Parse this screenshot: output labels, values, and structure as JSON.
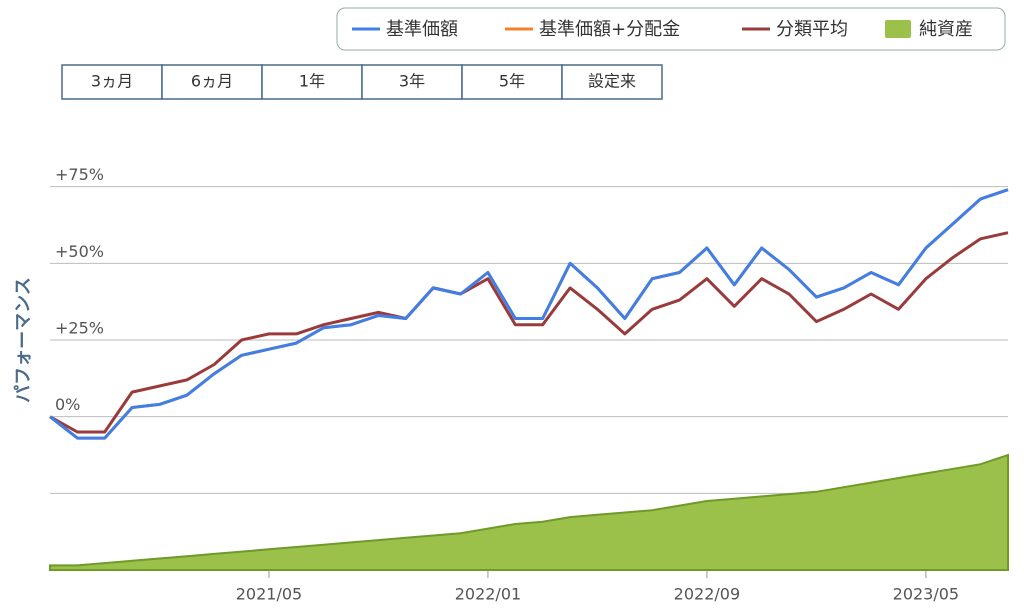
{
  "buttons": [
    "3ヵ月",
    "6ヵ月",
    "1年",
    "3年",
    "5年",
    "設定来"
  ],
  "chart_data": {
    "type": "line",
    "ylabel": "パフォーマンス",
    "x": [
      "2020/09",
      "2020/10",
      "2020/11",
      "2020/12",
      "2021/01",
      "2021/02",
      "2021/03",
      "2021/04",
      "2021/05",
      "2021/06",
      "2021/07",
      "2021/08",
      "2021/09",
      "2021/10",
      "2021/11",
      "2021/12",
      "2022/01",
      "2022/02",
      "2022/03",
      "2022/04",
      "2022/05",
      "2022/06",
      "2022/07",
      "2022/08",
      "2022/09",
      "2022/10",
      "2022/11",
      "2022/12",
      "2023/01",
      "2023/02",
      "2023/03",
      "2023/04",
      "2023/05",
      "2023/06",
      "2023/07",
      "2023/08"
    ],
    "xlim": [
      "2020/09",
      "2023/08"
    ],
    "xticks": [
      "2021/05",
      "2022/01",
      "2022/09",
      "2023/05"
    ],
    "ylim": [
      -50,
      100
    ],
    "yticks": [
      {
        "value": -25,
        "label": null
      },
      {
        "value": 0,
        "label": "0%"
      },
      {
        "value": 25,
        "label": "+25%"
      },
      {
        "value": 50,
        "label": "+50%"
      },
      {
        "value": 75,
        "label": "+75%"
      }
    ],
    "y2lim": [
      0,
      100
    ],
    "grid": true,
    "legend": "top-right",
    "series": [
      {
        "name": "基準価額",
        "color": "#3f7fe6",
        "values": [
          0,
          -7,
          -7,
          3,
          4,
          7,
          14,
          20,
          22,
          24,
          29,
          30,
          33,
          32,
          42,
          40,
          47,
          32,
          32,
          50,
          42,
          32,
          45,
          47,
          55,
          43,
          55,
          48,
          39,
          42,
          47,
          43,
          55,
          63,
          71,
          74
        ]
      },
      {
        "name": "基準価額+分配金",
        "color": "#f5802a",
        "values": [
          0,
          -7,
          -7,
          3,
          4,
          7,
          14,
          20,
          22,
          24,
          29,
          30,
          33,
          32,
          42,
          40,
          47,
          32,
          32,
          50,
          42,
          32,
          45,
          47,
          55,
          43,
          55,
          48,
          39,
          42,
          47,
          43,
          55,
          63,
          71,
          74
        ]
      },
      {
        "name": "分類平均",
        "color": "#9a3b3b",
        "values": [
          0,
          -5,
          -5,
          8,
          10,
          12,
          17,
          25,
          27,
          27,
          30,
          32,
          34,
          32,
          42,
          40,
          45,
          30,
          30,
          42,
          35,
          27,
          35,
          38,
          45,
          36,
          45,
          40,
          31,
          35,
          40,
          35,
          45,
          52,
          58,
          60
        ]
      },
      {
        "name": "純資産",
        "color": "#9bc14a",
        "type": "area",
        "axis": "y2",
        "values": [
          1,
          1,
          1.5,
          2,
          2.5,
          3,
          3.5,
          4,
          4.5,
          5,
          5.5,
          6,
          6.5,
          7,
          7.5,
          8,
          9,
          10,
          10.5,
          11.5,
          12,
          12.5,
          13,
          14,
          15,
          15.5,
          16,
          16.5,
          17,
          18,
          19,
          20,
          21,
          22,
          23,
          25
        ]
      }
    ]
  }
}
